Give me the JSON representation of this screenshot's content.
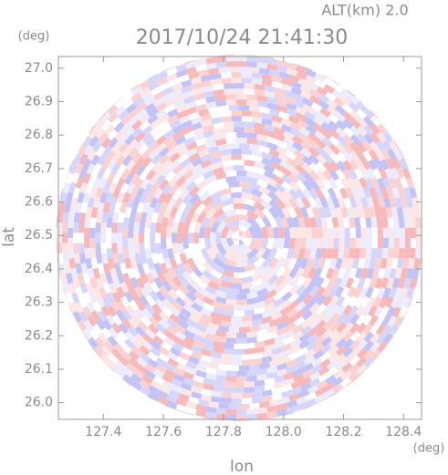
{
  "chart_data": {
    "type": "ppi",
    "title": "2017/10/24 21:41:30",
    "subtitle": "ALT(km) 2.0",
    "x_label": "lon",
    "y_label": "lat",
    "x_unit": "(deg)",
    "y_unit": "(deg)",
    "xlim": [
      127.25,
      128.46
    ],
    "ylim": [
      25.95,
      27.035
    ],
    "xticks": [
      127.4,
      127.6,
      127.8,
      {
        "value": 128.0,
        "label": "128.0"
      },
      128.2,
      128.4
    ],
    "yticks": [
      {
        "value": 26.0,
        "label": "26.0"
      },
      26.1,
      26.2,
      26.3,
      26.4,
      26.5,
      26.6,
      26.7,
      26.8,
      26.9,
      {
        "value": 27.0,
        "label": "27.0"
      }
    ]
  }
}
